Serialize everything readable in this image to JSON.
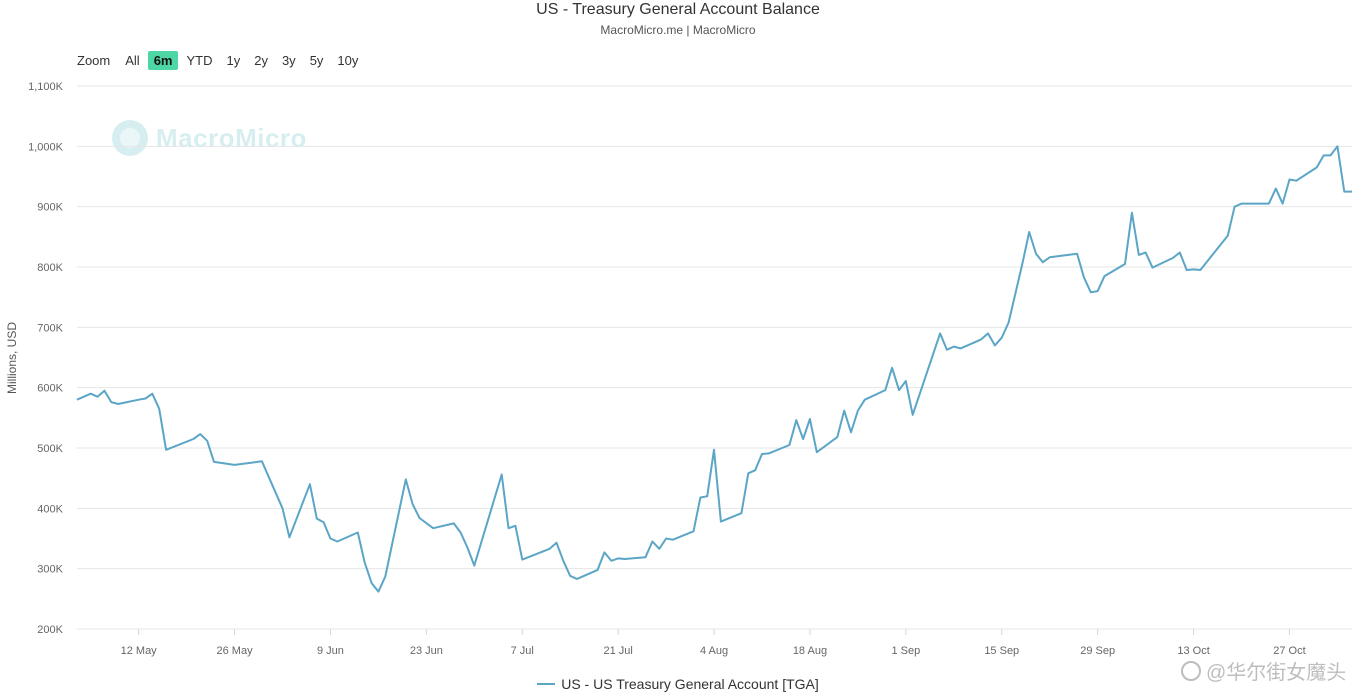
{
  "header": {
    "title": "US - Treasury General Account Balance",
    "subtitle": "MacroMicro.me | MacroMicro"
  },
  "range_selector": {
    "zoom_label": "Zoom",
    "buttons": [
      "All",
      "6m",
      "YTD",
      "1y",
      "2y",
      "3y",
      "5y",
      "10y"
    ],
    "active": "6m"
  },
  "watermark": {
    "text": "MacroMicro"
  },
  "source_watermark": {
    "text": "@华尔街女魔头"
  },
  "colors": {
    "series": "#5ba5c6",
    "active_button": "#4cd7a4",
    "grid": "#e6e6e6"
  },
  "chart_data": {
    "type": "line",
    "title": "US - Treasury General Account Balance",
    "ylabel": "Millions, USD",
    "ylim": [
      200000,
      1100000
    ],
    "y_ticks": [
      200000,
      300000,
      400000,
      500000,
      600000,
      700000,
      800000,
      900000,
      1000000,
      1100000
    ],
    "y_tick_labels": [
      "200K",
      "300K",
      "400K",
      "500K",
      "600K",
      "700K",
      "800K",
      "900K",
      "1,000K",
      "1,100K"
    ],
    "x_ticks": [
      "12 May",
      "26 May",
      "9 Jun",
      "23 Jun",
      "7 Jul",
      "21 Jul",
      "4 Aug",
      "18 Aug",
      "1 Sep",
      "15 Sep",
      "29 Sep",
      "13 Oct",
      "27 Oct"
    ],
    "xlim": [
      "2025-05-03",
      "2025-11-03"
    ],
    "grid": true,
    "legend_position": "bottom",
    "series": [
      {
        "name": "US - US Treasury General Account [TGA]",
        "points": [
          [
            "2025-05-03",
            580000
          ],
          [
            "2025-05-05",
            590000
          ],
          [
            "2025-05-06",
            585000
          ],
          [
            "2025-05-07",
            595000
          ],
          [
            "2025-05-08",
            576000
          ],
          [
            "2025-05-09",
            573000
          ],
          [
            "2025-05-12",
            580000
          ],
          [
            "2025-05-13",
            582000
          ],
          [
            "2025-05-14",
            590000
          ],
          [
            "2025-05-15",
            565000
          ],
          [
            "2025-05-16",
            497000
          ],
          [
            "2025-05-20",
            515000
          ],
          [
            "2025-05-21",
            523000
          ],
          [
            "2025-05-22",
            512000
          ],
          [
            "2025-05-23",
            477000
          ],
          [
            "2025-05-26",
            472000
          ],
          [
            "2025-05-30",
            478000
          ],
          [
            "2025-06-02",
            400000
          ],
          [
            "2025-06-03",
            352000
          ],
          [
            "2025-06-06",
            440000
          ],
          [
            "2025-06-07",
            383000
          ],
          [
            "2025-06-08",
            377000
          ],
          [
            "2025-06-09",
            350000
          ],
          [
            "2025-06-10",
            345000
          ],
          [
            "2025-06-13",
            360000
          ],
          [
            "2025-06-14",
            310000
          ],
          [
            "2025-06-15",
            276000
          ],
          [
            "2025-06-16",
            262000
          ],
          [
            "2025-06-17",
            287000
          ],
          [
            "2025-06-20",
            448000
          ],
          [
            "2025-06-21",
            407000
          ],
          [
            "2025-06-22",
            384000
          ],
          [
            "2025-06-24",
            367000
          ],
          [
            "2025-06-27",
            375000
          ],
          [
            "2025-06-28",
            360000
          ],
          [
            "2025-06-29",
            335000
          ],
          [
            "2025-06-30",
            305000
          ],
          [
            "2025-07-04",
            456000
          ],
          [
            "2025-07-05",
            367000
          ],
          [
            "2025-07-06",
            371000
          ],
          [
            "2025-07-07",
            315000
          ],
          [
            "2025-07-11",
            333000
          ],
          [
            "2025-07-12",
            343000
          ],
          [
            "2025-07-13",
            313000
          ],
          [
            "2025-07-14",
            288000
          ],
          [
            "2025-07-15",
            283000
          ],
          [
            "2025-07-18",
            298000
          ],
          [
            "2025-07-19",
            327000
          ],
          [
            "2025-07-20",
            313000
          ],
          [
            "2025-07-21",
            317000
          ],
          [
            "2025-07-22",
            316000
          ],
          [
            "2025-07-25",
            319000
          ],
          [
            "2025-07-26",
            345000
          ],
          [
            "2025-07-27",
            333000
          ],
          [
            "2025-07-28",
            350000
          ],
          [
            "2025-07-29",
            348000
          ],
          [
            "2025-08-01",
            362000
          ],
          [
            "2025-08-02",
            418000
          ],
          [
            "2025-08-03",
            420000
          ],
          [
            "2025-08-04",
            497000
          ],
          [
            "2025-08-05",
            378000
          ],
          [
            "2025-08-08",
            392000
          ],
          [
            "2025-08-09",
            458000
          ],
          [
            "2025-08-10",
            463000
          ],
          [
            "2025-08-11",
            490000
          ],
          [
            "2025-08-12",
            491000
          ],
          [
            "2025-08-15",
            505000
          ],
          [
            "2025-08-16",
            546000
          ],
          [
            "2025-08-17",
            515000
          ],
          [
            "2025-08-18",
            548000
          ],
          [
            "2025-08-19",
            493000
          ],
          [
            "2025-08-22",
            518000
          ],
          [
            "2025-08-23",
            562000
          ],
          [
            "2025-08-24",
            526000
          ],
          [
            "2025-08-25",
            562000
          ],
          [
            "2025-08-26",
            580000
          ],
          [
            "2025-08-29",
            596000
          ],
          [
            "2025-08-30",
            633000
          ],
          [
            "2025-08-31",
            596000
          ],
          [
            "2025-09-01",
            611000
          ],
          [
            "2025-09-02",
            555000
          ],
          [
            "2025-09-06",
            690000
          ],
          [
            "2025-09-07",
            663000
          ],
          [
            "2025-09-08",
            668000
          ],
          [
            "2025-09-09",
            665000
          ],
          [
            "2025-09-12",
            680000
          ],
          [
            "2025-09-13",
            690000
          ],
          [
            "2025-09-14",
            670000
          ],
          [
            "2025-09-15",
            683000
          ],
          [
            "2025-09-16",
            708000
          ],
          [
            "2025-09-18",
            805000
          ],
          [
            "2025-09-19",
            858000
          ],
          [
            "2025-09-20",
            822000
          ],
          [
            "2025-09-21",
            808000
          ],
          [
            "2025-09-22",
            816000
          ],
          [
            "2025-09-26",
            822000
          ],
          [
            "2025-09-27",
            783000
          ],
          [
            "2025-09-28",
            758000
          ],
          [
            "2025-09-29",
            760000
          ],
          [
            "2025-09-30",
            785000
          ],
          [
            "2025-10-03",
            805000
          ],
          [
            "2025-10-04",
            890000
          ],
          [
            "2025-10-05",
            820000
          ],
          [
            "2025-10-06",
            824000
          ],
          [
            "2025-10-07",
            799000
          ],
          [
            "2025-10-10",
            815000
          ],
          [
            "2025-10-11",
            824000
          ],
          [
            "2025-10-12",
            795000
          ],
          [
            "2025-10-13",
            796000
          ],
          [
            "2025-10-14",
            795000
          ],
          [
            "2025-10-17",
            838000
          ],
          [
            "2025-10-18",
            852000
          ],
          [
            "2025-10-19",
            900000
          ],
          [
            "2025-10-20",
            905000
          ],
          [
            "2025-10-24",
            905000
          ],
          [
            "2025-10-25",
            930000
          ],
          [
            "2025-10-26",
            905000
          ],
          [
            "2025-10-27",
            945000
          ],
          [
            "2025-10-28",
            943000
          ],
          [
            "2025-10-31",
            965000
          ],
          [
            "2025-11-01",
            985000
          ],
          [
            "2025-11-02",
            985000
          ],
          [
            "2025-11-03",
            1000000
          ],
          [
            "2025-11-04",
            925000
          ],
          [
            "2025-11-07",
            925000
          ]
        ]
      }
    ]
  }
}
